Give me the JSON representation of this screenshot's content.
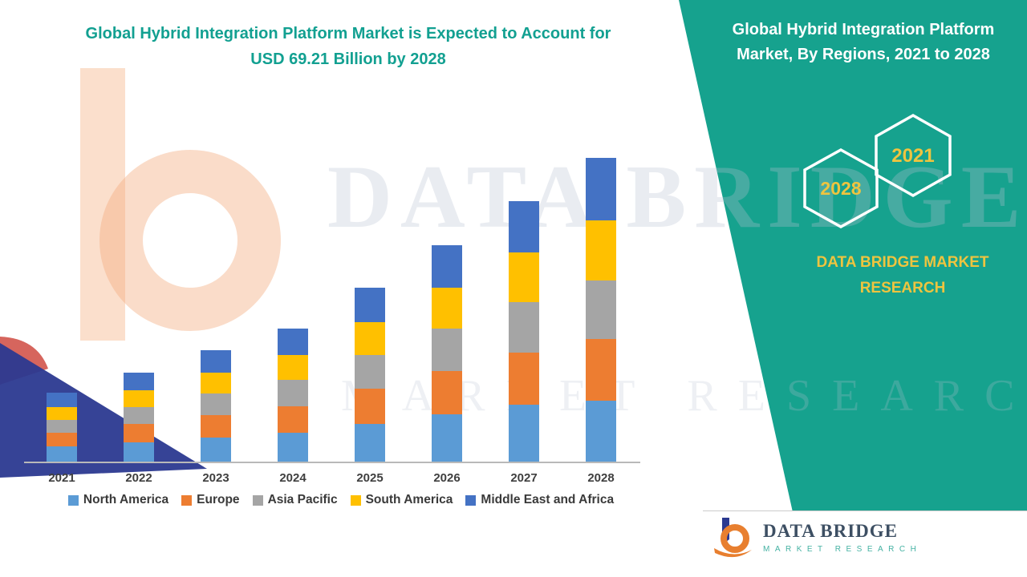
{
  "left_panel": {
    "title_line1": "Global Hybrid Integration Platform Market is Expected to Account for",
    "title_line2": "USD 69.21 Billion by 2028"
  },
  "right_panel": {
    "title_line1": "Global Hybrid Integration Platform",
    "title_line2": "Market, By Regions, 2021 to 2028",
    "hexagon_back_label": "2028",
    "hexagon_front_label": "2021",
    "brand_line1": "DATA BRIDGE MARKET",
    "brand_line2": "RESEARCH",
    "background_color": "#16a28e",
    "accent_color": "#eec43f"
  },
  "watermark": {
    "line1": "DATA BRIDGE",
    "line2": "MARKET RESEARCH"
  },
  "footer_logo": {
    "name": "DATA BRIDGE",
    "subtitle": "MARKET RESEARCH"
  },
  "chart_data": {
    "type": "bar",
    "stacked": true,
    "title": "Global Hybrid Integration Platform Market, By Regions, 2021 to 2028",
    "unit": "USD Billion",
    "xlabel": "",
    "ylabel": "",
    "ylim": [
      0,
      70
    ],
    "grid": false,
    "legend_position": "bottom",
    "categories": [
      "2021",
      "2022",
      "2023",
      "2024",
      "2025",
      "2026",
      "2027",
      "2028"
    ],
    "series": [
      {
        "name": "North America",
        "color": "#5B9BD5",
        "values": [
          3.4,
          4.4,
          5.5,
          6.6,
          8.6,
          10.7,
          12.9,
          13.9
        ]
      },
      {
        "name": "Europe",
        "color": "#ED7D31",
        "values": [
          3.2,
          4.1,
          5.1,
          6.1,
          8.0,
          10.0,
          12.0,
          14.1
        ]
      },
      {
        "name": "Asia Pacific",
        "color": "#A5A5A5",
        "values": [
          3.0,
          3.9,
          4.9,
          5.9,
          7.7,
          9.6,
          11.5,
          13.3
        ]
      },
      {
        "name": "South America",
        "color": "#FFC000",
        "values": [
          2.9,
          3.8,
          4.8,
          5.7,
          7.5,
          9.3,
          11.2,
          13.7
        ]
      },
      {
        "name": "Middle East and Africa",
        "color": "#4472C4",
        "values": [
          3.2,
          4.1,
          5.1,
          6.0,
          7.8,
          9.7,
          11.7,
          14.2
        ]
      }
    ],
    "totals_estimated": [
      15.7,
      20.3,
      25.4,
      30.3,
      39.6,
      49.3,
      59.3,
      69.2
    ]
  }
}
